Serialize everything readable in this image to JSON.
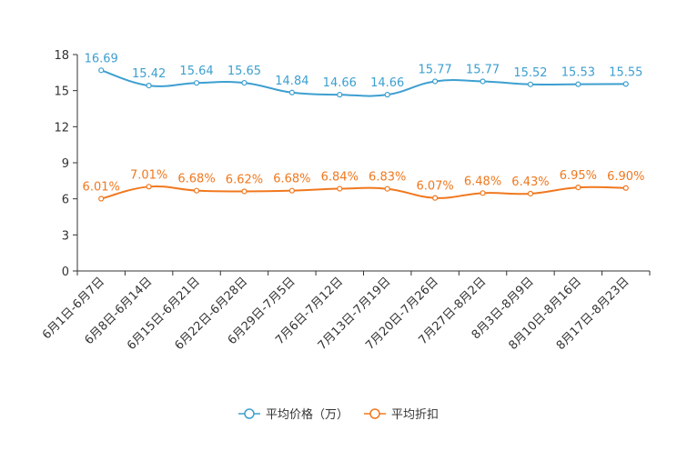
{
  "chart_data": {
    "type": "line",
    "title": "",
    "xlabel": "",
    "ylabel": "",
    "ylim": [
      0,
      18
    ],
    "yticks": [
      0,
      3,
      6,
      9,
      12,
      15,
      18
    ],
    "grid": false,
    "legend_position": "bottom-center",
    "categories": [
      "6月1日-6月7日",
      "6月8日-6月14日",
      "6月15日-6月21日",
      "6月22日-6月28日",
      "6月29日-7月5日",
      "7月6日-7月12日",
      "7月13日-7月19日",
      "7月20日-7月26日",
      "7月27日-8月2日",
      "8月3日-8月9日",
      "8月10日-8月16日",
      "8月17日-8月23日"
    ],
    "series": [
      {
        "name": "平均价格（万）",
        "color": "#3d9fd0",
        "values": [
          16.69,
          15.42,
          15.64,
          15.65,
          14.84,
          14.66,
          14.66,
          15.77,
          15.77,
          15.52,
          15.53,
          15.55
        ],
        "labels": [
          "16.69",
          "15.42",
          "15.64",
          "15.65",
          "14.84",
          "14.66",
          "14.66",
          "15.77",
          "15.77",
          "15.52",
          "15.53",
          "15.55"
        ]
      },
      {
        "name": "平均折扣",
        "color": "#f0781e",
        "values": [
          6.01,
          7.01,
          6.68,
          6.62,
          6.68,
          6.84,
          6.83,
          6.07,
          6.48,
          6.43,
          6.95,
          6.9
        ],
        "labels": [
          "6.01%",
          "7.01%",
          "6.68%",
          "6.62%",
          "6.68%",
          "6.84%",
          "6.83%",
          "6.07%",
          "6.48%",
          "6.43%",
          "6.95%",
          "6.90%"
        ]
      }
    ]
  }
}
